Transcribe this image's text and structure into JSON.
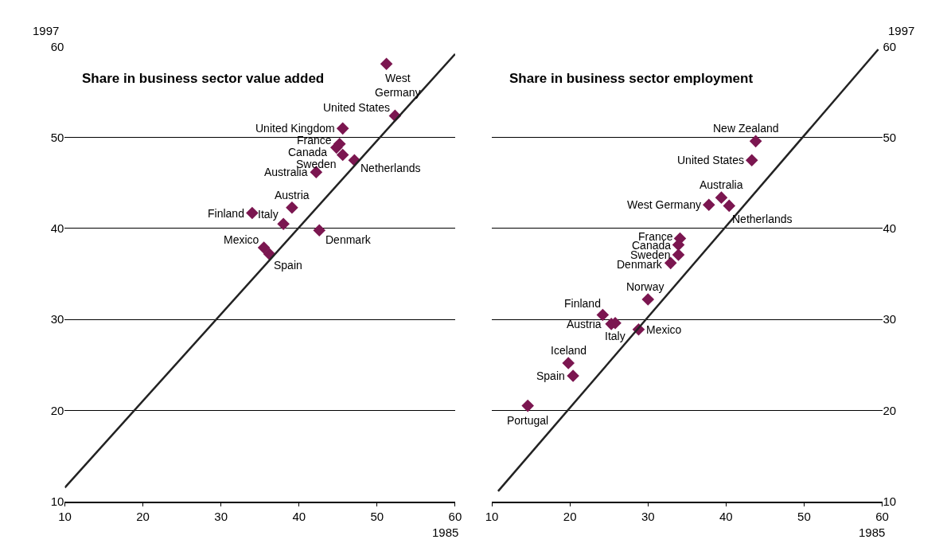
{
  "chart_data": [
    {
      "type": "scatter",
      "title": "Share in business sector value added",
      "xlabel": "1985",
      "ylabel": "1997",
      "xlim": [
        10,
        60
      ],
      "ylim": [
        10,
        60
      ],
      "xticks": [
        10,
        20,
        30,
        40,
        50,
        60
      ],
      "yticks": [
        10,
        20,
        30,
        40,
        50,
        60
      ],
      "grid": "y",
      "marker": "diamond",
      "series": [
        {
          "color": "#7b1650",
          "x": [
            51.2,
            52.3,
            45.6,
            45.2,
            44.8,
            45.6,
            47.1,
            42.2,
            39.1,
            34.0,
            38.0,
            42.6,
            35.5,
            36.2
          ],
          "values": [
            58.1,
            52.4,
            51.0,
            49.3,
            48.9,
            48.1,
            47.5,
            46.2,
            42.3,
            41.7,
            40.5,
            39.8,
            37.9,
            37.2
          ]
        },
        {
          "type": "line",
          "color": "#222222",
          "marker": "none",
          "x": [
            10,
            60
          ],
          "values": [
            11.5,
            59.2
          ]
        }
      ],
      "annotations": [
        {
          "text": "West\nGermany",
          "x": 51.2,
          "y": 58.1
        },
        {
          "text": "United States",
          "x": 52.3,
          "y": 52.4
        },
        {
          "text": "United Kingdom",
          "x": 45.6,
          "y": 51.0
        },
        {
          "text": "France",
          "x": 45.2,
          "y": 49.3
        },
        {
          "text": "Canada",
          "x": 44.8,
          "y": 48.9
        },
        {
          "text": "Sweden",
          "x": 45.6,
          "y": 48.1
        },
        {
          "text": "Netherlands",
          "x": 47.1,
          "y": 47.5
        },
        {
          "text": "Australia",
          "x": 42.2,
          "y": 46.2
        },
        {
          "text": "Austria",
          "x": 39.1,
          "y": 42.3
        },
        {
          "text": "Finland",
          "x": 34.0,
          "y": 41.7
        },
        {
          "text": "Italy",
          "x": 38.0,
          "y": 40.5
        },
        {
          "text": "Denmark",
          "x": 42.6,
          "y": 39.8
        },
        {
          "text": "Mexico",
          "x": 35.5,
          "y": 37.9
        },
        {
          "text": "Spain",
          "x": 36.2,
          "y": 37.2
        }
      ]
    },
    {
      "type": "scatter",
      "title": "Share in business sector employment",
      "xlabel": "1985",
      "ylabel": "1997",
      "xlim": [
        10,
        60
      ],
      "ylim": [
        10,
        60
      ],
      "xticks": [
        10,
        20,
        30,
        40,
        50,
        60
      ],
      "yticks": [
        10,
        20,
        30,
        40,
        50,
        60
      ],
      "grid": "y",
      "marker": "diamond",
      "series": [
        {
          "color": "#7b1650",
          "x": [
            43.8,
            43.3,
            39.4,
            37.8,
            40.4,
            34.1,
            33.9,
            33.9,
            32.9,
            30.0,
            24.2,
            25.3,
            25.8,
            28.8,
            19.8,
            20.4,
            14.6
          ],
          "values": [
            49.6,
            47.5,
            43.4,
            42.6,
            42.5,
            38.9,
            38.2,
            37.1,
            36.2,
            32.2,
            30.5,
            29.5,
            29.6,
            28.9,
            25.2,
            23.8,
            20.5
          ]
        },
        {
          "type": "line",
          "color": "#222222",
          "marker": "none",
          "x": [
            10.8,
            59.5
          ],
          "values": [
            11.1,
            59.7
          ]
        }
      ],
      "annotations": [
        {
          "text": "New Zealand",
          "x": 43.8,
          "y": 49.6
        },
        {
          "text": "United States",
          "x": 43.3,
          "y": 47.5
        },
        {
          "text": "Australia",
          "x": 39.4,
          "y": 43.4
        },
        {
          "text": "West Germany",
          "x": 37.8,
          "y": 42.6
        },
        {
          "text": "Netherlands",
          "x": 40.4,
          "y": 42.5
        },
        {
          "text": "France",
          "x": 34.1,
          "y": 38.9
        },
        {
          "text": "Canada",
          "x": 33.9,
          "y": 38.2
        },
        {
          "text": "Sweden",
          "x": 33.9,
          "y": 37.1
        },
        {
          "text": "Denmark",
          "x": 32.9,
          "y": 36.2
        },
        {
          "text": "Norway",
          "x": 30.0,
          "y": 32.2
        },
        {
          "text": "Finland",
          "x": 24.2,
          "y": 30.5
        },
        {
          "text": "Austria",
          "x": 25.3,
          "y": 29.5
        },
        {
          "text": "Italy",
          "x": 25.8,
          "y": 29.6
        },
        {
          "text": "Mexico",
          "x": 28.8,
          "y": 28.9
        },
        {
          "text": "Iceland",
          "x": 19.8,
          "y": 25.2
        },
        {
          "text": "Spain",
          "x": 20.4,
          "y": 23.8
        },
        {
          "text": "Portugal",
          "x": 14.6,
          "y": 20.5
        }
      ]
    }
  ]
}
